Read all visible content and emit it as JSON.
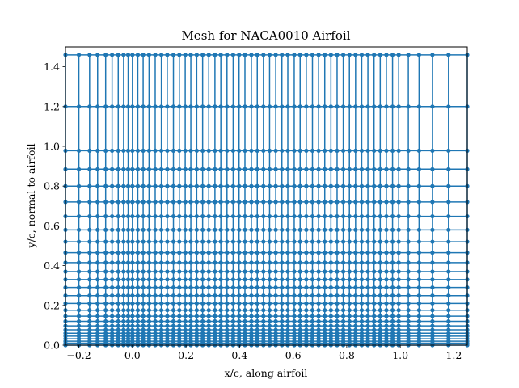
{
  "chart_data": {
    "type": "scatter",
    "title": "Mesh for NACA0010 Airfoil",
    "xlabel": "x/c, along airfoil",
    "ylabel": "y/c, normal to airfoil",
    "xlim": [
      -0.25,
      1.25
    ],
    "ylim": [
      0.0,
      1.5
    ],
    "grid": false,
    "legend": "none",
    "series_color": "#1f77b4",
    "x_ticks": [
      -0.2,
      0.0,
      0.2,
      0.4,
      0.6,
      0.8,
      1.0,
      1.2
    ],
    "x_tick_labels": [
      "−0.2",
      "0.0",
      "0.2",
      "0.4",
      "0.6",
      "0.8",
      "1.0",
      "1.2"
    ],
    "y_ticks": [
      0.0,
      0.2,
      0.4,
      0.6,
      0.8,
      1.0,
      1.2,
      1.4
    ],
    "y_tick_labels": [
      "0.0",
      "0.2",
      "0.4",
      "0.6",
      "0.8",
      "1.0",
      "1.2",
      "1.4"
    ],
    "mesh_x": [
      -0.25,
      -0.2,
      -0.16,
      -0.13,
      -0.1,
      -0.076,
      -0.053,
      -0.033,
      -0.016,
      0.0,
      0.02,
      0.04,
      0.062,
      0.085,
      0.108,
      0.13,
      0.153,
      0.175,
      0.197,
      0.218,
      0.24,
      0.262,
      0.285,
      0.308,
      0.33,
      0.353,
      0.376,
      0.398,
      0.42,
      0.444,
      0.466,
      0.489,
      0.512,
      0.535,
      0.558,
      0.58,
      0.604,
      0.626,
      0.649,
      0.672,
      0.695,
      0.718,
      0.741,
      0.764,
      0.787,
      0.81,
      0.833,
      0.856,
      0.879,
      0.902,
      0.925,
      0.948,
      0.971,
      0.994,
      1.03,
      1.07,
      1.12,
      1.18,
      1.25
    ],
    "mesh_y": [
      0.0,
      0.01,
      0.02,
      0.032,
      0.045,
      0.06,
      0.077,
      0.097,
      0.12,
      0.146,
      0.176,
      0.21,
      0.249,
      0.29,
      0.33,
      0.37,
      0.415,
      0.465,
      0.52,
      0.58,
      0.648,
      0.72,
      0.8,
      0.885,
      0.978,
      1.2,
      1.46
    ]
  }
}
